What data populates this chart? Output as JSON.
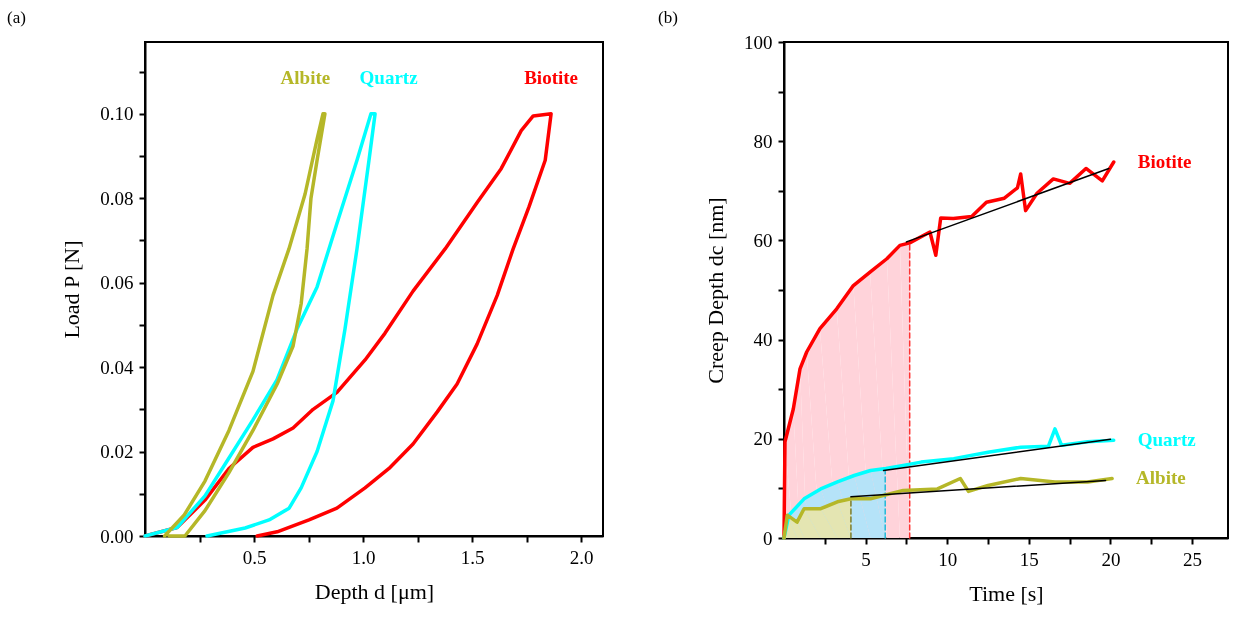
{
  "chart_data": [
    {
      "type": "line",
      "xlabel": "Depth d [μm]",
      "ylabel": "Load P [N]",
      "annotations": [
        "(a)"
      ],
      "xlim": [
        0,
        2.1
      ],
      "ylim": [
        0,
        0.117
      ],
      "xticks": [
        {
          "value": 0.25,
          "label": null
        },
        0.5,
        {
          "value": 0.75,
          "label": null
        },
        {
          "value": 1,
          "label": "1.0"
        },
        {
          "value": 1.25,
          "label": null
        },
        1.5,
        {
          "value": 1.75,
          "label": null
        },
        {
          "value": 2,
          "label": "2.0"
        }
      ],
      "yticks": [
        {
          "value": 0,
          "label": "0.00"
        },
        {
          "value": 0.01,
          "label": null
        },
        0.02,
        {
          "value": 0.03,
          "label": null
        },
        0.04,
        {
          "value": 0.05,
          "label": null
        },
        0.06,
        {
          "value": 0.07,
          "label": null
        },
        0.08,
        {
          "value": 0.09,
          "label": null
        },
        {
          "value": 0.1,
          "label": "0.10"
        },
        {
          "value": 0.11,
          "label": null
        }
      ],
      "series": [
        {
          "name": "Biotite",
          "color": "#ff0000",
          "x": [
            0,
            0.147,
            0.275,
            0.385,
            0.495,
            0.587,
            0.679,
            0.771,
            0.88,
            1.009,
            1.1,
            1.229,
            1.376,
            1.523,
            1.633,
            1.725,
            1.78,
            1.862,
            1.835,
            1.761,
            1.688,
            1.615,
            1.523,
            1.431,
            1.34,
            1.229,
            1.119,
            1.009,
            0.88,
            0.752,
            0.606,
            0.514
          ],
          "values": [
            0,
            0.002,
            0.0085,
            0.016,
            0.021,
            0.023,
            0.0256,
            0.03,
            0.034,
            0.0417,
            0.048,
            0.058,
            0.068,
            0.079,
            0.087,
            0.096,
            0.0995,
            0.1,
            0.089,
            0.078,
            0.068,
            0.057,
            0.0455,
            0.036,
            0.0294,
            0.0218,
            0.016,
            0.0114,
            0.0066,
            0.0038,
            0.001,
            0
          ]
        },
        {
          "name": "Quartz",
          "color": "#00ffff",
          "x": [
            0,
            0.147,
            0.275,
            0.367,
            0.495,
            0.605,
            0.697,
            0.789,
            0.88,
            0.972,
            1.036,
            1.055,
            1.027,
            0.972,
            0.917,
            0.862,
            0.789,
            0.716,
            0.661,
            0.569,
            0.459,
            0.284
          ],
          "values": [
            0,
            0.002,
            0.0095,
            0.017,
            0.0275,
            0.037,
            0.049,
            0.059,
            0.074,
            0.089,
            0.1,
            0.1,
            0.089,
            0.068,
            0.049,
            0.032,
            0.02,
            0.0114,
            0.0066,
            0.0038,
            0.0019,
            0
          ]
        },
        {
          "name": "Albite",
          "color": "#b5b728",
          "x": [
            0.09,
            0.18,
            0.275,
            0.385,
            0.495,
            0.587,
            0.66,
            0.734,
            0.789,
            0.816,
            0.825,
            0.789,
            0.761,
            0.743,
            0.716,
            0.679,
            0.606,
            0.495,
            0.385,
            0.275,
            0.183,
            0.11
          ],
          "values": [
            0,
            0.005,
            0.013,
            0.025,
            0.039,
            0.057,
            0.068,
            0.081,
            0.094,
            0.1,
            0.1,
            0.089,
            0.08,
            0.068,
            0.055,
            0.045,
            0.036,
            0.025,
            0.015,
            0.006,
            0,
            0
          ]
        }
      ]
    },
    {
      "type": "line",
      "xlabel": "Time [s]",
      "ylabel": "Creep Depth dc [nm]",
      "annotations": [
        "(b)"
      ],
      "xlim": [
        0,
        27.2
      ],
      "ylim": [
        0,
        100
      ],
      "xticks": [
        {
          "value": 2.5,
          "label": null
        },
        5,
        {
          "value": 7.5,
          "label": null
        },
        10,
        {
          "value": 12.5,
          "label": null
        },
        15,
        {
          "value": 17.5,
          "label": null
        },
        20,
        {
          "value": 22.5,
          "label": null
        },
        25
      ],
      "yticks": [
        0,
        {
          "value": 10,
          "label": null
        },
        20,
        {
          "value": 30,
          "label": null
        },
        40,
        {
          "value": 50,
          "label": null
        },
        60,
        {
          "value": 70,
          "label": null
        },
        80,
        {
          "value": 90,
          "label": null
        },
        100
      ],
      "series": [
        {
          "type": "area",
          "color": "#ffd3da",
          "x": [
            0,
            0.06,
            0.57,
            0.98,
            1.39,
            2.2,
            3.23,
            4.25,
            5.27,
            6.3,
            7.1,
            7.7
          ],
          "values": [
            0,
            19.4,
            26,
            34.1,
            37.5,
            42.2,
            46.2,
            50.9,
            53.6,
            56.3,
            59,
            59.5
          ]
        },
        {
          "type": "area",
          "color": "#b5e3f8",
          "x": [
            0,
            0.3,
            1.23,
            2.25,
            3.27,
            4.3,
            5.3,
            6.2
          ],
          "values": [
            0,
            4.6,
            7.9,
            9.9,
            11.3,
            12.6,
            13.6,
            14
          ]
        },
        {
          "type": "area",
          "color": "#e4e5b2",
          "x": [
            0,
            0.2,
            0.8,
            1.23,
            2.25,
            3.27,
            4.1
          ],
          "values": [
            0,
            4.6,
            3.2,
            5.9,
            5.9,
            7.3,
            7.9
          ]
        },
        {
          "type": "line",
          "color": "#ff3333",
          "line_style": "dashed",
          "x": [
            7.7,
            7.7
          ],
          "values": [
            0,
            59.5
          ]
        },
        {
          "type": "line",
          "color": "#22b8d8",
          "line_style": "dashed",
          "x": [
            6.2,
            6.2
          ],
          "values": [
            0,
            14
          ]
        },
        {
          "type": "line",
          "color": "#7d7d2a",
          "line_style": "dashed",
          "x": [
            4.1,
            4.1
          ],
          "values": [
            0,
            7.9
          ]
        },
        {
          "name": "Biotite",
          "color": "#ff0000",
          "x": [
            0,
            0.06,
            0.57,
            0.98,
            1.39,
            2.2,
            3.23,
            4.25,
            5.27,
            6.3,
            7.1,
            7.7,
            8.94,
            9.3,
            9.6,
            10.37,
            11.5,
            12.4,
            13.5,
            14.3,
            14.5,
            14.8,
            15.5,
            16.5,
            17.5,
            18.5,
            19.5,
            20.2
          ],
          "values": [
            0,
            19.4,
            26,
            34.1,
            37.5,
            42.2,
            46.2,
            50.9,
            53.6,
            56.3,
            59,
            59.5,
            61.7,
            57,
            64.5,
            64.4,
            64.8,
            67.7,
            68.5,
            70.6,
            73.4,
            66,
            69.5,
            72.4,
            71.5,
            74.5,
            72,
            75.8
          ]
        },
        {
          "name": "Quartz",
          "color": "#00ffff",
          "x": [
            0,
            0.3,
            1.23,
            2.25,
            3.27,
            4.3,
            5.3,
            6.24,
            7.3,
            8.4,
            10.4,
            12.5,
            14.5,
            16.2,
            16.6,
            17,
            18.6,
            20.2
          ],
          "values": [
            0,
            4.6,
            7.9,
            9.9,
            11.3,
            12.6,
            13.6,
            14,
            14.6,
            15.3,
            16,
            17.3,
            18.3,
            18.5,
            22,
            18.7,
            19.4,
            19.7
          ]
        },
        {
          "name": "Albite",
          "color": "#b5b728",
          "x": [
            0,
            0.2,
            0.8,
            1.23,
            2.25,
            3.27,
            4.1,
            5.3,
            7.3,
            9.4,
            10.8,
            11.3,
            12.5,
            14.5,
            16.6,
            18.6,
            20.1
          ],
          "values": [
            0,
            4.6,
            3.2,
            5.9,
            5.9,
            7.3,
            7.9,
            7.9,
            9.6,
            9.9,
            12,
            9.4,
            10.6,
            12,
            11.3,
            11.3,
            12
          ]
        },
        {
          "type": "line",
          "color": "#000000",
          "x": [
            7.5,
            19.9
          ],
          "values": [
            59.7,
            74.5
          ]
        },
        {
          "type": "line",
          "color": "#000000",
          "x": [
            6.1,
            20
          ],
          "values": [
            13.6,
            19.9
          ]
        },
        {
          "type": "line",
          "color": "#000000",
          "x": [
            4.1,
            19.7
          ],
          "values": [
            8.3,
            11.6
          ]
        }
      ]
    }
  ]
}
